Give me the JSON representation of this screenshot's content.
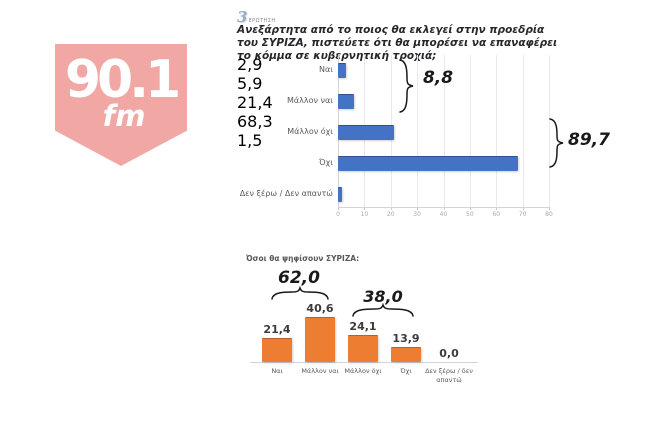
{
  "logo": {
    "station": "90.1",
    "band": "fm",
    "color": "#f1a8a5"
  },
  "question": {
    "number": "3",
    "label": "ΕΡΩΤΗΣΗ",
    "text": "Ανεξάρτητα από το ποιος θα εκλεγεί στην προεδρία του ΣΥΡΙΖΑ, πιστεύετε ότι θα μπορέσει να επαναφέρει το κόμμα σε κυβερνητική τροχιά;"
  },
  "chart_data": [
    {
      "type": "bar",
      "orientation": "horizontal",
      "title": "",
      "categories": [
        "Ναι",
        "Μάλλον ναι",
        "Μάλλον όχι",
        "Όχι",
        "Δεν ξέρω / Δεν απαντώ"
      ],
      "values": [
        2.9,
        5.9,
        21.4,
        68.3,
        1.5
      ],
      "value_labels": [
        "2,9",
        "5,9",
        "21,4",
        "68,3",
        "1,5"
      ],
      "annotations": [
        {
          "label": "8,8",
          "covers": [
            "Ναι",
            "Μάλλον ναι"
          ]
        },
        {
          "label": "89,7",
          "covers": [
            "Μάλλον όχι",
            "Όχι"
          ]
        }
      ],
      "xlim": [
        0,
        80
      ],
      "x_ticks": [
        0,
        10,
        20,
        30,
        40,
        50,
        60,
        70,
        80
      ],
      "bar_color": "#4472c4",
      "grid": true,
      "legend": "none"
    },
    {
      "type": "bar",
      "orientation": "vertical",
      "title": "Όσοι θα ψηφίσουν ΣΥΡΙΖΑ:",
      "categories": [
        "Ναι",
        "Μάλλον ναι",
        "Μάλλον όχι",
        "Όχι",
        "Δεν ξέρω / δεν απαντώ"
      ],
      "values": [
        21.4,
        40.6,
        24.1,
        13.9,
        0.0
      ],
      "value_labels": [
        "21,4",
        "40,6",
        "24,1",
        "13,9",
        "0,0"
      ],
      "annotations": [
        {
          "label": "62,0",
          "covers": [
            "Ναι",
            "Μάλλον ναι"
          ]
        },
        {
          "label": "38,0",
          "covers": [
            "Μάλλον όχι",
            "Όχι"
          ]
        }
      ],
      "ylim": [
        0,
        45
      ],
      "bar_color": "#ed7d31",
      "grid": false,
      "legend": "none"
    }
  ]
}
